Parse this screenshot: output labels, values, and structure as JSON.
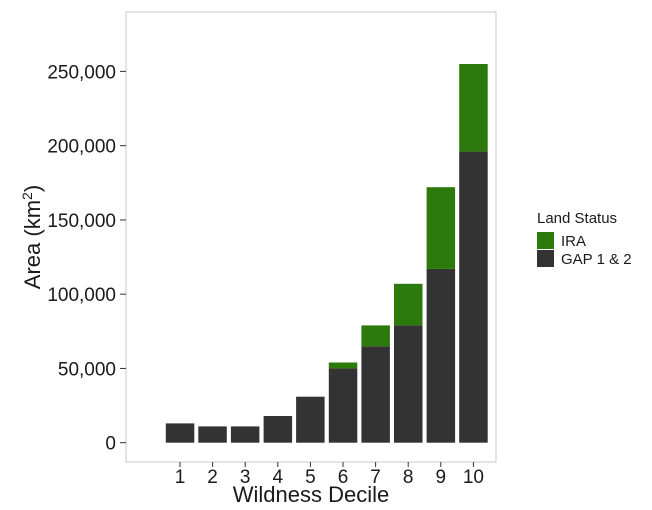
{
  "chart_data": {
    "type": "bar",
    "stacked": true,
    "categories": [
      "1",
      "2",
      "3",
      "4",
      "5",
      "6",
      "7",
      "8",
      "9",
      "10"
    ],
    "series": [
      {
        "name": "GAP 1 & 2",
        "color": "#333333",
        "values": [
          13000,
          11000,
          11000,
          18000,
          31000,
          50000,
          65000,
          79000,
          117000,
          196000
        ]
      },
      {
        "name": "IRA",
        "color": "#2b7a0b",
        "values": [
          0,
          0,
          0,
          0,
          0,
          4000,
          14000,
          28000,
          55000,
          59000
        ]
      }
    ],
    "xlabel": "Wildness Decile",
    "ylabel_main": "Area  (km",
    "ylabel_sup": "2",
    "ylabel_end": ")",
    "ylim": [
      -13000,
      290000
    ],
    "yticks": [
      0,
      50000,
      100000,
      150000,
      200000,
      250000
    ],
    "ytick_labels": [
      "0",
      "50,000",
      "100,000",
      "150,000",
      "200,000",
      "250,000"
    ],
    "legend_title": "Land Status",
    "legend": [
      {
        "name": "IRA",
        "color": "#2b7a0b"
      },
      {
        "name": "GAP 1 & 2",
        "color": "#333333"
      }
    ],
    "legend_position": "right",
    "grid": false
  }
}
